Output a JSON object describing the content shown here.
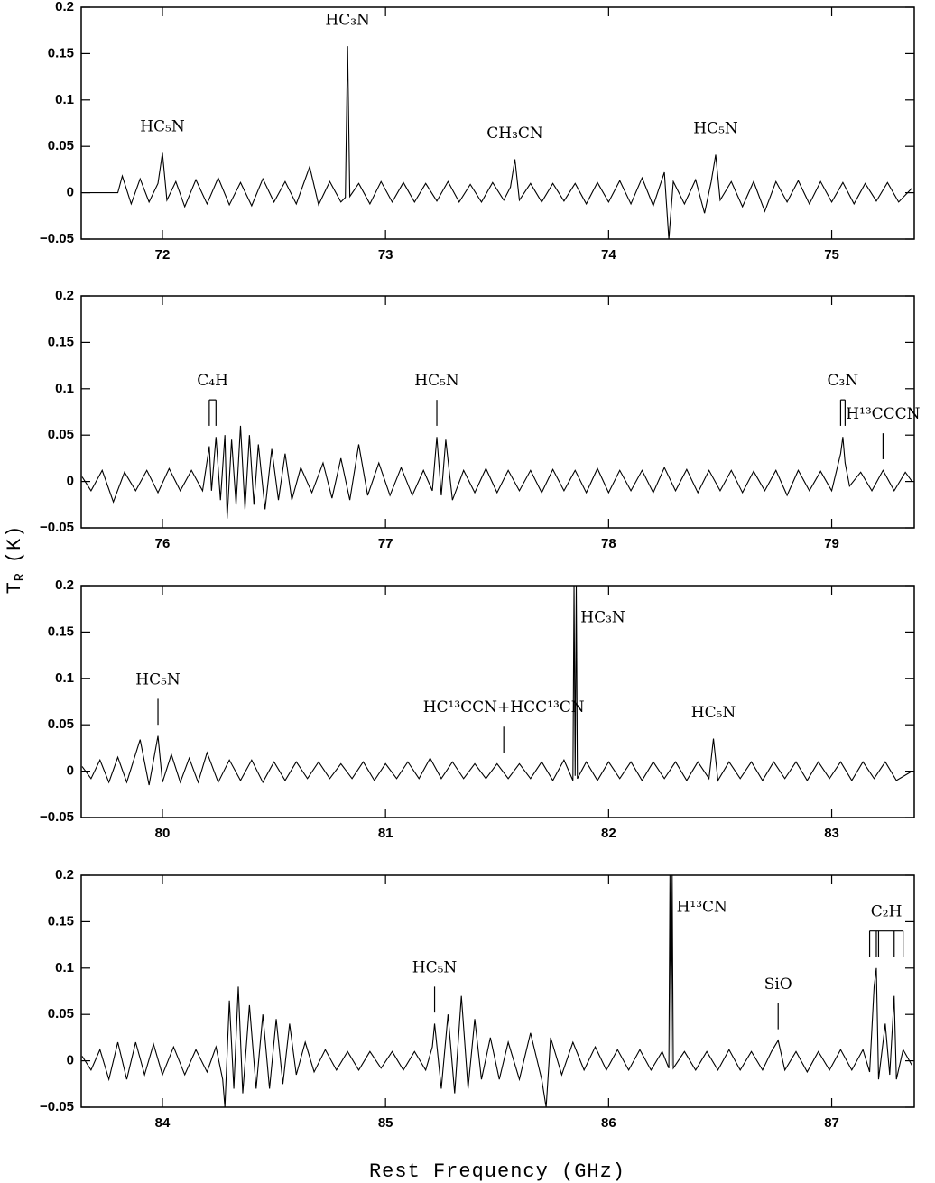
{
  "figure": {
    "xlabel": "Rest Frequency (GHz)",
    "ylabel": {
      "symbol": "T",
      "subscript": "R",
      "unit": "(K)"
    }
  },
  "chart_data": [
    {
      "type": "line",
      "color": "#000000",
      "xlim": [
        71.636,
        75.37
      ],
      "xticks": [
        72,
        73,
        74,
        75
      ],
      "ylim": [
        -0.05,
        0.2
      ],
      "yticks": [
        {
          "value": -0.05,
          "label": "−0.05"
        },
        0,
        0.05,
        0.1,
        0.15,
        0.2
      ],
      "x": [
        71.64,
        71.8,
        71.82,
        71.86,
        71.9,
        71.94,
        71.98,
        72.0,
        72.02,
        72.06,
        72.1,
        72.15,
        72.2,
        72.25,
        72.3,
        72.35,
        72.4,
        72.45,
        72.5,
        72.55,
        72.6,
        72.66,
        72.7,
        72.75,
        72.8,
        72.82,
        72.83,
        72.84,
        72.88,
        72.93,
        72.98,
        73.03,
        73.08,
        73.13,
        73.18,
        73.23,
        73.28,
        73.33,
        73.38,
        73.43,
        73.48,
        73.53,
        73.56,
        73.58,
        73.6,
        73.65,
        73.7,
        73.75,
        73.8,
        73.85,
        73.9,
        73.95,
        74.0,
        74.05,
        74.1,
        74.15,
        74.2,
        74.25,
        74.27,
        74.29,
        74.34,
        74.39,
        74.43,
        74.46,
        74.48,
        74.5,
        74.55,
        74.6,
        74.65,
        74.7,
        74.75,
        74.8,
        74.85,
        74.9,
        74.95,
        75.0,
        75.05,
        75.1,
        75.15,
        75.2,
        75.25,
        75.3,
        75.36
      ],
      "values": [
        0,
        0,
        0.018,
        -0.012,
        0.015,
        -0.01,
        0.01,
        0.043,
        -0.008,
        0.012,
        -0.015,
        0.014,
        -0.012,
        0.016,
        -0.013,
        0.011,
        -0.014,
        0.015,
        -0.01,
        0.012,
        -0.012,
        0.028,
        -0.013,
        0.012,
        -0.01,
        -0.005,
        0.158,
        -0.004,
        0.01,
        -0.012,
        0.012,
        -0.01,
        0.011,
        -0.01,
        0.01,
        -0.009,
        0.012,
        -0.01,
        0.009,
        -0.01,
        0.011,
        -0.008,
        0.006,
        0.036,
        -0.008,
        0.01,
        -0.01,
        0.01,
        -0.009,
        0.01,
        -0.012,
        0.011,
        -0.01,
        0.013,
        -0.012,
        0.016,
        -0.014,
        0.022,
        -0.05,
        0.012,
        -0.012,
        0.014,
        -0.022,
        0.012,
        0.041,
        -0.008,
        0.012,
        -0.015,
        0.012,
        -0.02,
        0.012,
        -0.01,
        0.013,
        -0.012,
        0.012,
        -0.01,
        0.011,
        -0.012,
        0.01,
        -0.009,
        0.011,
        -0.01,
        0.005
      ],
      "annotations": [
        {
          "text": "HC₅N",
          "x": 72.0,
          "marker": false
        },
        {
          "text": "HC₃N",
          "x": 72.83,
          "marker": false
        },
        {
          "text": "CH₃CN",
          "x": 73.58,
          "marker": false
        },
        {
          "text": "HC₅N",
          "x": 74.48,
          "marker": false
        }
      ]
    },
    {
      "type": "line",
      "color": "#000000",
      "xlim": [
        75.636,
        79.37
      ],
      "xticks": [
        76,
        77,
        78,
        79
      ],
      "ylim": [
        -0.05,
        0.2
      ],
      "yticks": [
        {
          "value": -0.05,
          "label": "−0.05"
        },
        0,
        0.05,
        0.1,
        0.15,
        0.2
      ],
      "x": [
        75.64,
        75.68,
        75.73,
        75.78,
        75.83,
        75.88,
        75.93,
        75.98,
        76.03,
        76.08,
        76.13,
        76.18,
        76.21,
        76.22,
        76.24,
        76.26,
        76.28,
        76.29,
        76.31,
        76.33,
        76.35,
        76.37,
        76.39,
        76.41,
        76.43,
        76.46,
        76.49,
        76.52,
        76.55,
        76.58,
        76.62,
        76.67,
        76.72,
        76.76,
        76.8,
        76.84,
        76.88,
        76.92,
        76.97,
        77.02,
        77.07,
        77.12,
        77.17,
        77.21,
        77.23,
        77.25,
        77.27,
        77.3,
        77.35,
        77.4,
        77.45,
        77.5,
        77.55,
        77.6,
        77.65,
        77.7,
        77.75,
        77.8,
        77.85,
        77.9,
        77.95,
        78.0,
        78.05,
        78.1,
        78.15,
        78.2,
        78.25,
        78.3,
        78.35,
        78.4,
        78.45,
        78.5,
        78.55,
        78.6,
        78.65,
        78.7,
        78.75,
        78.8,
        78.85,
        78.9,
        78.95,
        79.0,
        79.03,
        79.04,
        79.05,
        79.06,
        79.08,
        79.13,
        79.18,
        79.23,
        79.28,
        79.33,
        79.36
      ],
      "values": [
        0.005,
        -0.01,
        0.012,
        -0.022,
        0.01,
        -0.01,
        0.012,
        -0.012,
        0.014,
        -0.01,
        0.012,
        -0.01,
        0.038,
        -0.01,
        0.048,
        -0.02,
        0.05,
        -0.04,
        0.045,
        -0.025,
        0.06,
        -0.03,
        0.05,
        -0.025,
        0.04,
        -0.03,
        0.035,
        -0.02,
        0.03,
        -0.02,
        0.015,
        -0.012,
        0.02,
        -0.018,
        0.025,
        -0.02,
        0.04,
        -0.015,
        0.02,
        -0.015,
        0.015,
        -0.015,
        0.012,
        -0.01,
        0.048,
        -0.015,
        0.045,
        -0.02,
        0.012,
        -0.012,
        0.014,
        -0.012,
        0.012,
        -0.01,
        0.012,
        -0.012,
        0.013,
        -0.01,
        0.012,
        -0.012,
        0.014,
        -0.012,
        0.012,
        -0.01,
        0.012,
        -0.012,
        0.015,
        -0.01,
        0.013,
        -0.012,
        0.012,
        -0.01,
        0.012,
        -0.012,
        0.011,
        -0.01,
        0.012,
        -0.015,
        0.012,
        -0.01,
        0.011,
        -0.01,
        0.02,
        0.03,
        0.048,
        0.02,
        -0.005,
        0.01,
        -0.01,
        0.012,
        -0.01,
        0.01,
        0
      ],
      "annotations": [
        {
          "text": "C₄H",
          "x": [
            76.21,
            76.24
          ],
          "marker": true
        },
        {
          "text": "HC₅N",
          "x": 77.23,
          "marker": true
        },
        {
          "text": "C₃N",
          "x": [
            79.04,
            79.06
          ],
          "marker": true
        },
        {
          "text": "H¹³CCCN",
          "x": 79.23,
          "marker": true
        }
      ]
    },
    {
      "type": "line",
      "color": "#000000",
      "xlim": [
        79.636,
        83.37
      ],
      "xticks": [
        80,
        81,
        82,
        83
      ],
      "ylim": [
        -0.05,
        0.2
      ],
      "yticks": [
        {
          "value": -0.05,
          "label": "−0.05"
        },
        0,
        0.05,
        0.1,
        0.15,
        0.2
      ],
      "x": [
        79.64,
        79.68,
        79.72,
        79.76,
        79.8,
        79.84,
        79.9,
        79.94,
        79.98,
        80.0,
        80.04,
        80.08,
        80.12,
        80.16,
        80.2,
        80.25,
        80.3,
        80.35,
        80.4,
        80.45,
        80.5,
        80.55,
        80.6,
        80.65,
        80.7,
        80.75,
        80.8,
        80.85,
        80.9,
        80.95,
        81.0,
        81.05,
        81.1,
        81.15,
        81.2,
        81.25,
        81.3,
        81.35,
        81.4,
        81.45,
        81.5,
        81.55,
        81.6,
        81.65,
        81.7,
        81.75,
        81.8,
        81.84,
        81.845,
        81.85,
        81.855,
        81.86,
        81.9,
        81.95,
        82.0,
        82.05,
        82.1,
        82.15,
        82.2,
        82.25,
        82.3,
        82.35,
        82.4,
        82.45,
        82.47,
        82.49,
        82.54,
        82.59,
        82.64,
        82.69,
        82.74,
        82.79,
        82.84,
        82.89,
        82.94,
        82.99,
        83.04,
        83.09,
        83.14,
        83.19,
        83.24,
        83.29,
        83.36
      ],
      "values": [
        0.005,
        -0.008,
        0.012,
        -0.012,
        0.015,
        -0.012,
        0.034,
        -0.015,
        0.038,
        -0.012,
        0.018,
        -0.012,
        0.014,
        -0.012,
        0.02,
        -0.012,
        0.012,
        -0.01,
        0.012,
        -0.012,
        0.01,
        -0.01,
        0.01,
        -0.008,
        0.01,
        -0.008,
        0.008,
        -0.008,
        0.01,
        -0.01,
        0.008,
        -0.008,
        0.01,
        -0.008,
        0.014,
        -0.008,
        0.01,
        -0.008,
        0.008,
        -0.008,
        0.008,
        -0.008,
        0.008,
        -0.008,
        0.01,
        -0.01,
        0.012,
        -0.01,
        0.2,
        -0.005,
        0.2,
        -0.008,
        0.01,
        -0.01,
        0.01,
        -0.008,
        0.01,
        -0.01,
        0.01,
        -0.008,
        0.01,
        -0.01,
        0.01,
        -0.008,
        0.035,
        -0.01,
        0.01,
        -0.008,
        0.01,
        -0.01,
        0.01,
        -0.008,
        0.01,
        -0.01,
        0.01,
        -0.008,
        0.01,
        -0.01,
        0.01,
        -0.008,
        0.01,
        -0.01,
        0
      ],
      "annotations": [
        {
          "text": "HC₅N",
          "x": 79.98,
          "marker": true
        },
        {
          "text": "HC¹³CCN+HCC¹³CN",
          "x": 81.53,
          "marker": true
        },
        {
          "text": "HC₃N",
          "x": 81.85,
          "marker": false
        },
        {
          "text": "HC₅N",
          "x": 82.47,
          "marker": false
        }
      ]
    },
    {
      "type": "line",
      "color": "#000000",
      "xlim": [
        83.636,
        87.37
      ],
      "xticks": [
        84,
        85,
        86,
        87
      ],
      "ylim": [
        -0.05,
        0.2
      ],
      "yticks": [
        {
          "value": -0.05,
          "label": "−0.05"
        },
        0,
        0.05,
        0.1,
        0.15,
        0.2
      ],
      "x": [
        83.64,
        83.68,
        83.72,
        83.76,
        83.8,
        83.84,
        83.88,
        83.92,
        83.96,
        84.0,
        84.05,
        84.1,
        84.15,
        84.2,
        84.24,
        84.27,
        84.28,
        84.3,
        84.32,
        84.34,
        84.36,
        84.39,
        84.42,
        84.45,
        84.48,
        84.51,
        84.54,
        84.57,
        84.6,
        84.64,
        84.68,
        84.73,
        84.78,
        84.83,
        84.88,
        84.93,
        84.98,
        85.03,
        85.08,
        85.13,
        85.18,
        85.21,
        85.22,
        85.25,
        85.28,
        85.31,
        85.34,
        85.37,
        85.4,
        85.43,
        85.47,
        85.51,
        85.55,
        85.6,
        85.65,
        85.7,
        85.72,
        85.74,
        85.79,
        85.84,
        85.89,
        85.94,
        85.99,
        86.04,
        86.09,
        86.14,
        86.19,
        86.24,
        86.27,
        86.275,
        86.28,
        86.285,
        86.29,
        86.34,
        86.39,
        86.44,
        86.49,
        86.54,
        86.59,
        86.64,
        86.69,
        86.73,
        86.76,
        86.79,
        86.84,
        86.89,
        86.94,
        86.99,
        87.04,
        87.09,
        87.14,
        87.17,
        87.19,
        87.2,
        87.21,
        87.24,
        87.26,
        87.28,
        87.29,
        87.32,
        87.36
      ],
      "values": [
        0.005,
        -0.01,
        0.012,
        -0.02,
        0.02,
        -0.02,
        0.02,
        -0.015,
        0.018,
        -0.015,
        0.015,
        -0.015,
        0.012,
        -0.012,
        0.015,
        -0.02,
        -0.05,
        0.065,
        -0.03,
        0.08,
        -0.035,
        0.06,
        -0.03,
        0.05,
        -0.03,
        0.045,
        -0.025,
        0.04,
        -0.015,
        0.02,
        -0.012,
        0.012,
        -0.01,
        0.01,
        -0.01,
        0.01,
        -0.008,
        0.01,
        -0.01,
        0.01,
        -0.01,
        0.015,
        0.04,
        -0.03,
        0.05,
        -0.035,
        0.07,
        -0.03,
        0.045,
        -0.02,
        0.025,
        -0.02,
        0.02,
        -0.02,
        0.03,
        -0.02,
        -0.05,
        0.025,
        -0.015,
        0.02,
        -0.01,
        0.015,
        -0.01,
        0.012,
        -0.01,
        0.012,
        -0.01,
        0.01,
        -0.008,
        0.2,
        -0.005,
        0.2,
        -0.008,
        0.01,
        -0.01,
        0.01,
        -0.01,
        0.012,
        -0.01,
        0.01,
        -0.01,
        0.01,
        0.022,
        -0.01,
        0.01,
        -0.012,
        0.01,
        -0.01,
        0.012,
        -0.01,
        0.012,
        -0.012,
        0.08,
        0.1,
        -0.02,
        0.04,
        -0.015,
        0.07,
        -0.02,
        0.012,
        -0.005
      ],
      "annotations": [
        {
          "text": "HC₅N",
          "x": 85.22,
          "marker": true
        },
        {
          "text": "H¹³CN",
          "x": 86.28,
          "marker": false
        },
        {
          "text": "SiO",
          "x": 86.76,
          "marker": true
        },
        {
          "text": "C₂H",
          "x": [
            87.17,
            87.2,
            87.21,
            87.28,
            87.32
          ],
          "marker": true
        }
      ]
    }
  ]
}
